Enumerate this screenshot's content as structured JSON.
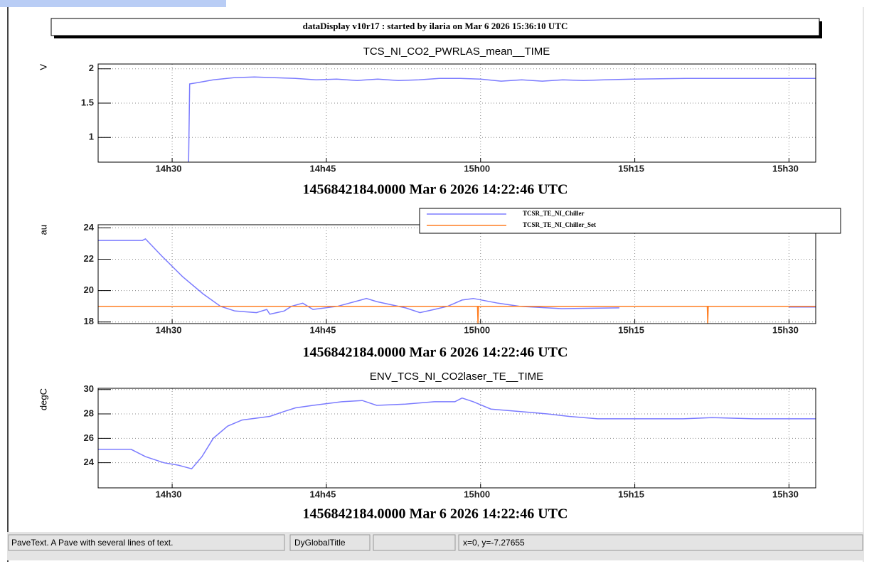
{
  "window": {
    "title": "dataDisplay v10r17 : started by ilaria on Mar  6 2026 15:36:10 UTC",
    "status_bar": [
      "PaveText. A Pave with several lines of text.",
      "DyGlobalTitle",
      "x=0, y=-7.27655"
    ]
  },
  "chart_data": [
    {
      "type": "line",
      "title": "TCS_NI_CO2_PWRLAS_mean__TIME",
      "y_label": "V",
      "x_label": "1456842184.0000 Mar 6 2026 14:22:46 UTC",
      "xlim": [
        862.8,
        932.6
      ],
      "xticks": [
        {
          "value": 870,
          "label": "14h30"
        },
        {
          "value": 885,
          "label": "14h45"
        },
        {
          "value": 900,
          "label": "15h00"
        },
        {
          "value": 915,
          "label": "15h15"
        },
        {
          "value": 930,
          "label": "15h30"
        }
      ],
      "ylim": [
        0.64,
        2.07
      ],
      "yticks": [
        1,
        1.5,
        2
      ],
      "grid": true,
      "series": [
        {
          "name": "TCS_NI_CO2_PWRLAS_mean",
          "color": "#7b7bff",
          "x": [
            871.6,
            871.7,
            872.5,
            874,
            876,
            878,
            880,
            882,
            884,
            886,
            888,
            890,
            892,
            894,
            896,
            898,
            900,
            902,
            904,
            906,
            908,
            910,
            912,
            915,
            920,
            925,
            932.6
          ],
          "values": [
            0.64,
            1.78,
            1.8,
            1.84,
            1.87,
            1.88,
            1.87,
            1.86,
            1.84,
            1.85,
            1.83,
            1.85,
            1.83,
            1.84,
            1.86,
            1.86,
            1.85,
            1.82,
            1.84,
            1.82,
            1.84,
            1.83,
            1.84,
            1.85,
            1.86,
            1.86,
            1.86
          ]
        }
      ]
    },
    {
      "type": "line",
      "y_label": "au",
      "x_label": "1456842184.0000 Mar 6 2026 14:22:46 UTC",
      "xlim": [
        862.8,
        932.6
      ],
      "xticks": [
        {
          "value": 870,
          "label": "14h30"
        },
        {
          "value": 885,
          "label": "14h45"
        },
        {
          "value": 900,
          "label": "15h00"
        },
        {
          "value": 915,
          "label": "15h15"
        },
        {
          "value": 930,
          "label": "15h30"
        }
      ],
      "ylim": [
        17.9,
        24.2
      ],
      "yticks": [
        18,
        20,
        22,
        24
      ],
      "grid": true,
      "legend": "top-right",
      "series": [
        {
          "name": "TCSR_TE_NI_Chiller",
          "color": "#7b7bff",
          "x": [
            862.8,
            867.1,
            867.4,
            869,
            871,
            873,
            874.7,
            876.1,
            878.2,
            879.2,
            879.5,
            880.9,
            881.6,
            882.7,
            883.7,
            886.1,
            888.9,
            889.9,
            892.7,
            894.1,
            895.5,
            896.8,
            898.2,
            899.3,
            901.7,
            903.8,
            906.5,
            907.9,
            913.5,
            null,
            930,
            932.6
          ],
          "values": [
            23.2,
            23.2,
            23.3,
            22.2,
            20.9,
            19.8,
            19,
            18.7,
            18.6,
            18.8,
            18.5,
            18.7,
            19,
            19.2,
            18.8,
            19,
            19.5,
            19.3,
            18.9,
            18.6,
            18.8,
            19,
            19.4,
            19.5,
            19.2,
            19,
            18.9,
            18.85,
            18.9,
            null,
            18.95,
            18.95
          ]
        },
        {
          "name": "TCSR_TE_NI_Chiller_Set",
          "color": "#ff7f24",
          "x": [
            862.8,
            899.7,
            899.75,
            899.8,
            922.05,
            922.1,
            922.15,
            932.6
          ],
          "values": [
            19,
            19,
            17.9,
            19,
            19,
            17.9,
            19,
            19
          ]
        }
      ]
    },
    {
      "type": "line",
      "title": "ENV_TCS_NI_CO2laser_TE__TIME",
      "y_label": "degC",
      "x_label": "1456842184.0000 Mar 6 2026 14:22:46 UTC",
      "xlim": [
        862.8,
        932.6
      ],
      "xticks": [
        {
          "value": 870,
          "label": "14h30"
        },
        {
          "value": 885,
          "label": "14h45"
        },
        {
          "value": 900,
          "label": "15h00"
        },
        {
          "value": 915,
          "label": "15h15"
        },
        {
          "value": 930,
          "label": "15h30"
        }
      ],
      "ylim": [
        21.94,
        30.1
      ],
      "yticks": [
        24,
        26,
        28,
        30
      ],
      "grid": true,
      "series": [
        {
          "name": "ENV_TCS_NI_CO2laser_TE",
          "color": "#7b7bff",
          "x": [
            862.8,
            866,
            867.4,
            869.2,
            870.6,
            871.9,
            872.9,
            874,
            875.4,
            876.8,
            879.5,
            880.9,
            882,
            883.7,
            886.5,
            888.5,
            889.9,
            892.7,
            895.5,
            897.5,
            898.2,
            899.3,
            901,
            903.8,
            906.5,
            908.6,
            911.4,
            919.7,
            922.5,
            926.6,
            932.6
          ],
          "values": [
            25.1,
            25.1,
            24.5,
            24,
            23.8,
            23.5,
            24.5,
            26,
            27,
            27.5,
            27.8,
            28.2,
            28.5,
            28.7,
            29,
            29.1,
            28.7,
            28.8,
            29,
            29,
            29.3,
            29,
            28.4,
            28.2,
            28,
            27.8,
            27.6,
            27.6,
            27.7,
            27.6,
            27.6
          ]
        }
      ]
    }
  ]
}
